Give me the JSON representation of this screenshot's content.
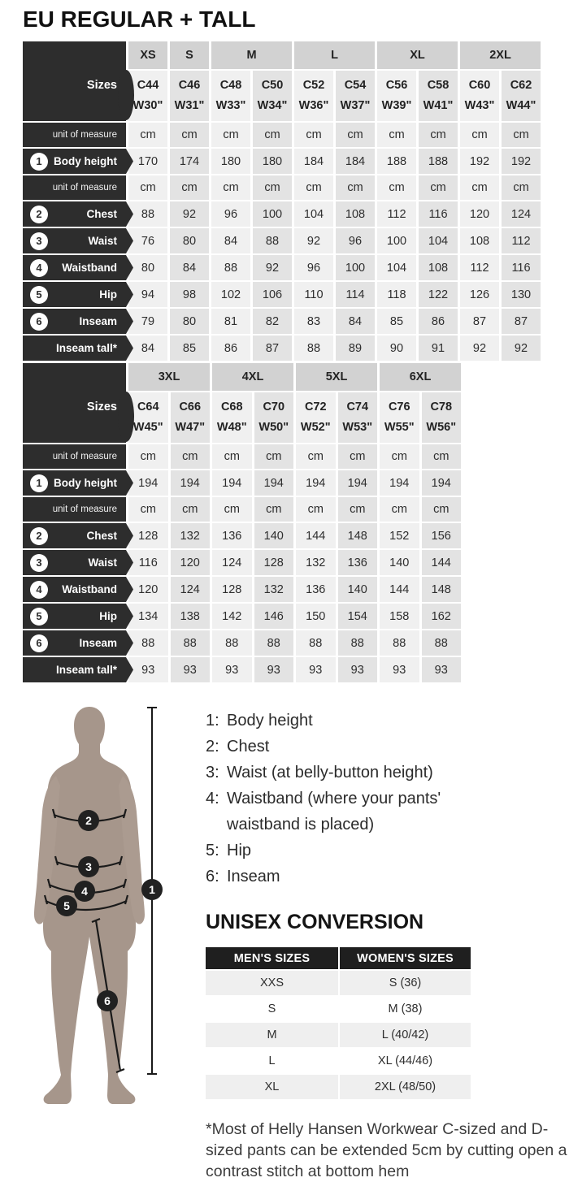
{
  "title": "EU REGULAR + TALL",
  "tables": [
    {
      "sizes_label": "Sizes",
      "groups": [
        {
          "label": "XS",
          "span": 1
        },
        {
          "label": "S",
          "span": 1
        },
        {
          "label": "M",
          "span": 2
        },
        {
          "label": "L",
          "span": 2
        },
        {
          "label": "XL",
          "span": 2
        },
        {
          "label": "2XL",
          "span": 2
        }
      ],
      "c_sizes": [
        "C44",
        "C46",
        "C48",
        "C50",
        "C52",
        "C54",
        "C56",
        "C58",
        "C60",
        "C62"
      ],
      "w_sizes": [
        "W30\"",
        "W31\"",
        "W33\"",
        "W34\"",
        "W36\"",
        "W37\"",
        "W39\"",
        "W41\"",
        "W43\"",
        "W44\""
      ],
      "rows": [
        {
          "type": "unit",
          "num": "",
          "label": "unit of measure",
          "values": [
            "cm",
            "cm",
            "cm",
            "cm",
            "cm",
            "cm",
            "cm",
            "cm",
            "cm",
            "cm"
          ]
        },
        {
          "type": "measure",
          "num": "1",
          "label": "Body height",
          "values": [
            "170",
            "174",
            "180",
            "180",
            "184",
            "184",
            "188",
            "188",
            "192",
            "192"
          ]
        },
        {
          "type": "unit",
          "num": "",
          "label": "unit of measure",
          "values": [
            "cm",
            "cm",
            "cm",
            "cm",
            "cm",
            "cm",
            "cm",
            "cm",
            "cm",
            "cm"
          ]
        },
        {
          "type": "measure",
          "num": "2",
          "label": "Chest",
          "values": [
            "88",
            "92",
            "96",
            "100",
            "104",
            "108",
            "112",
            "116",
            "120",
            "124"
          ]
        },
        {
          "type": "measure",
          "num": "3",
          "label": "Waist",
          "values": [
            "76",
            "80",
            "84",
            "88",
            "92",
            "96",
            "100",
            "104",
            "108",
            "112"
          ]
        },
        {
          "type": "measure",
          "num": "4",
          "label": "Waistband",
          "values": [
            "80",
            "84",
            "88",
            "92",
            "96",
            "100",
            "104",
            "108",
            "112",
            "116"
          ]
        },
        {
          "type": "measure",
          "num": "5",
          "label": "Hip",
          "values": [
            "94",
            "98",
            "102",
            "106",
            "110",
            "114",
            "118",
            "122",
            "126",
            "130"
          ]
        },
        {
          "type": "measure",
          "num": "6",
          "label": "Inseam",
          "values": [
            "79",
            "80",
            "81",
            "82",
            "83",
            "84",
            "85",
            "86",
            "87",
            "87"
          ]
        },
        {
          "type": "measure",
          "num": "",
          "label": "Inseam tall*",
          "values": [
            "84",
            "85",
            "86",
            "87",
            "88",
            "89",
            "90",
            "91",
            "92",
            "92"
          ]
        }
      ]
    },
    {
      "sizes_label": "Sizes",
      "groups": [
        {
          "label": "3XL",
          "span": 2
        },
        {
          "label": "4XL",
          "span": 2
        },
        {
          "label": "5XL",
          "span": 2
        },
        {
          "label": "6XL",
          "span": 2
        }
      ],
      "c_sizes": [
        "C64",
        "C66",
        "C68",
        "C70",
        "C72",
        "C74",
        "C76",
        "C78"
      ],
      "w_sizes": [
        "W45\"",
        "W47\"",
        "W48\"",
        "W50\"",
        "W52\"",
        "W53\"",
        "W55\"",
        "W56\""
      ],
      "rows": [
        {
          "type": "unit",
          "num": "",
          "label": "unit of measure",
          "values": [
            "cm",
            "cm",
            "cm",
            "cm",
            "cm",
            "cm",
            "cm",
            "cm"
          ]
        },
        {
          "type": "measure",
          "num": "1",
          "label": "Body height",
          "values": [
            "194",
            "194",
            "194",
            "194",
            "194",
            "194",
            "194",
            "194"
          ]
        },
        {
          "type": "unit",
          "num": "",
          "label": "unit of measure",
          "values": [
            "cm",
            "cm",
            "cm",
            "cm",
            "cm",
            "cm",
            "cm",
            "cm"
          ]
        },
        {
          "type": "measure",
          "num": "2",
          "label": "Chest",
          "values": [
            "128",
            "132",
            "136",
            "140",
            "144",
            "148",
            "152",
            "156"
          ]
        },
        {
          "type": "measure",
          "num": "3",
          "label": "Waist",
          "values": [
            "116",
            "120",
            "124",
            "128",
            "132",
            "136",
            "140",
            "144"
          ]
        },
        {
          "type": "measure",
          "num": "4",
          "label": "Waistband",
          "values": [
            "120",
            "124",
            "128",
            "132",
            "136",
            "140",
            "144",
            "148"
          ]
        },
        {
          "type": "measure",
          "num": "5",
          "label": "Hip",
          "values": [
            "134",
            "138",
            "142",
            "146",
            "150",
            "154",
            "158",
            "162"
          ]
        },
        {
          "type": "measure",
          "num": "6",
          "label": "Inseam",
          "values": [
            "88",
            "88",
            "88",
            "88",
            "88",
            "88",
            "88",
            "88"
          ]
        },
        {
          "type": "measure",
          "num": "",
          "label": "Inseam tall*",
          "values": [
            "93",
            "93",
            "93",
            "93",
            "93",
            "93",
            "93",
            "93"
          ]
        }
      ]
    }
  ],
  "legend": {
    "items": [
      {
        "num": "1:",
        "text": "Body height"
      },
      {
        "num": "2:",
        "text": "Chest"
      },
      {
        "num": "3:",
        "text": "Waist (at belly-button height)"
      },
      {
        "num": "4:",
        "text": "Waistband (where your pants' waistband is placed)"
      },
      {
        "num": "5:",
        "text": "Hip"
      },
      {
        "num": "6:",
        "text": "Inseam"
      }
    ]
  },
  "figure": {
    "markers": [
      "1",
      "2",
      "3",
      "4",
      "5",
      "6"
    ]
  },
  "conversion": {
    "title": "UNISEX CONVERSION",
    "headers": [
      "MEN'S SIZES",
      "WOMEN'S SIZES"
    ],
    "rows": [
      [
        "XXS",
        "S (36)"
      ],
      [
        "S",
        "M (38)"
      ],
      [
        "M",
        "L (40/42)"
      ],
      [
        "L",
        "XL (44/46)"
      ],
      [
        "XL",
        "2XL (48/50)"
      ]
    ]
  },
  "footnote": "*Most of Helly Hansen Workwear C-sized and D-sized pants can be extended 5cm by cutting open a contrast stitch at bottom hem",
  "colors": {
    "header_dark": "#2d2d2d",
    "group_gray": "#d2d2d2",
    "column_light": "#f0f0f0",
    "column_dark": "#e3e3e3",
    "conversion_header": "#1f1f1f",
    "conversion_row_gray": "#efefef",
    "body_silhouette": "#a6968b",
    "marker_circle": "#212121"
  }
}
